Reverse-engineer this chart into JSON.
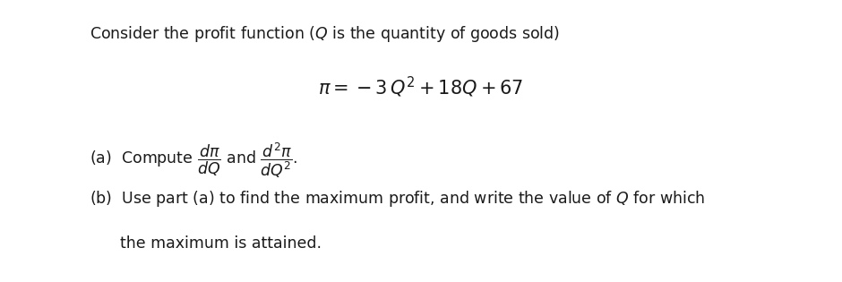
{
  "background_color": "#ffffff",
  "figsize": [
    9.4,
    3.15
  ],
  "dpi": 100,
  "title_line": "Consider the profit function ($Q$ is the quantity of goods sold)",
  "title_fontsize": 12.5,
  "equation": "$\\pi = -3\\,Q^2 + 18Q + 67$",
  "equation_fontsize": 15,
  "part_a_fontsize": 12.5,
  "part_b_fontsize": 12.5,
  "text_color": "#1a1a1a"
}
